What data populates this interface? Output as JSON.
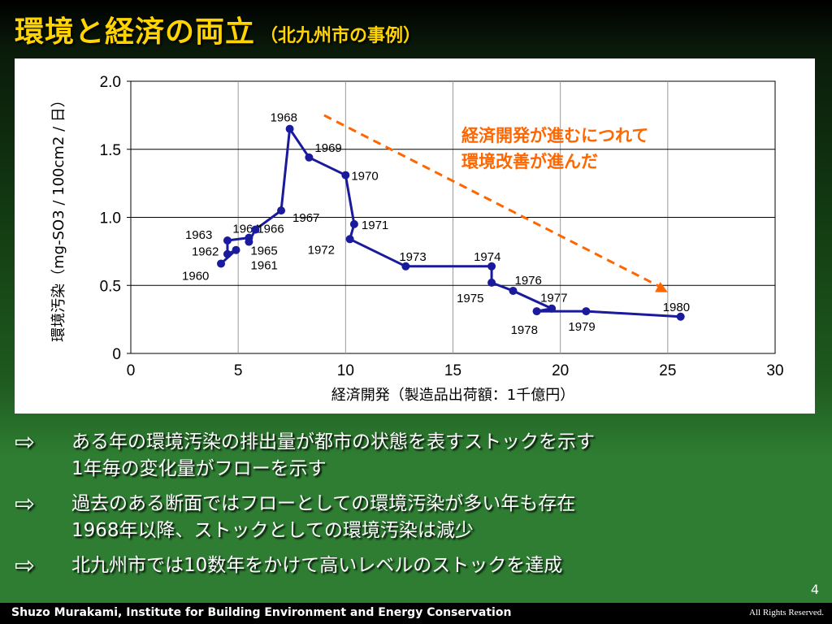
{
  "slide": {
    "title": "環境と経済の両立",
    "subtitle": "（北九州市の事例）",
    "page_number": "4",
    "footer_author": "Shuzo Murakami,  Institute for Building Environment and Energy Conservation",
    "footer_rights": "All Rights Reserved."
  },
  "annotation": {
    "lines": [
      "経済開発が進むにつれて",
      "環境改善が進んだ"
    ],
    "color": "#ff6600"
  },
  "bullets": [
    {
      "arrow": "⇨",
      "lines": [
        "ある年の環境汚染の排出量が都市の状態を表すストックを示す",
        "1年毎の変化量がフローを示す"
      ]
    },
    {
      "arrow": "⇨",
      "lines": [
        "過去のある断面ではフローとしての環境汚染が多い年も存在",
        "1968年以降、ストックとしての環境汚染は減少"
      ]
    },
    {
      "arrow": "⇨",
      "lines": [
        "北九州市では10数年をかけて高いレベルのストックを達成"
      ]
    }
  ],
  "chart_data": {
    "type": "line",
    "xlabel": "経済開発（製造品出荷額：1千億円）",
    "ylabel": "環境汚染（mg-SO3 / 100cm2 / 日）",
    "xlim": [
      0,
      30
    ],
    "ylim": [
      0,
      2.0
    ],
    "xticks": [
      "0",
      "5",
      "10",
      "15",
      "20",
      "25",
      "30"
    ],
    "yticks": [
      "0",
      "0.5",
      "1.0",
      "1.5",
      "2.0"
    ],
    "grid": true,
    "series_color": "#1a1a9c",
    "points": [
      {
        "year": "1960",
        "x": 4.2,
        "y": 0.66
      },
      {
        "year": "1961",
        "x": 4.9,
        "y": 0.76
      },
      {
        "year": "1962",
        "x": 4.5,
        "y": 0.73
      },
      {
        "year": "1963",
        "x": 4.5,
        "y": 0.83
      },
      {
        "year": "1964",
        "x": 5.5,
        "y": 0.85
      },
      {
        "year": "1965",
        "x": 5.5,
        "y": 0.82
      },
      {
        "year": "1966",
        "x": 5.8,
        "y": 0.91
      },
      {
        "year": "1967",
        "x": 7.0,
        "y": 1.05
      },
      {
        "year": "1968",
        "x": 7.4,
        "y": 1.65
      },
      {
        "year": "1969",
        "x": 8.3,
        "y": 1.44
      },
      {
        "year": "1970",
        "x": 10.0,
        "y": 1.31
      },
      {
        "year": "1971",
        "x": 10.4,
        "y": 0.95
      },
      {
        "year": "1972",
        "x": 10.2,
        "y": 0.84
      },
      {
        "year": "1973",
        "x": 12.8,
        "y": 0.64
      },
      {
        "year": "1974",
        "x": 16.8,
        "y": 0.64
      },
      {
        "year": "1975",
        "x": 16.8,
        "y": 0.52
      },
      {
        "year": "1976",
        "x": 17.8,
        "y": 0.46
      },
      {
        "year": "1977",
        "x": 19.6,
        "y": 0.33
      },
      {
        "year": "1978",
        "x": 18.9,
        "y": 0.31
      },
      {
        "year": "1979",
        "x": 21.2,
        "y": 0.31
      },
      {
        "year": "1980",
        "x": 25.6,
        "y": 0.27
      }
    ],
    "trend_arrow": {
      "from": [
        9.0,
        1.75
      ],
      "to": [
        25.0,
        0.45
      ],
      "color": "#ff6600"
    }
  }
}
